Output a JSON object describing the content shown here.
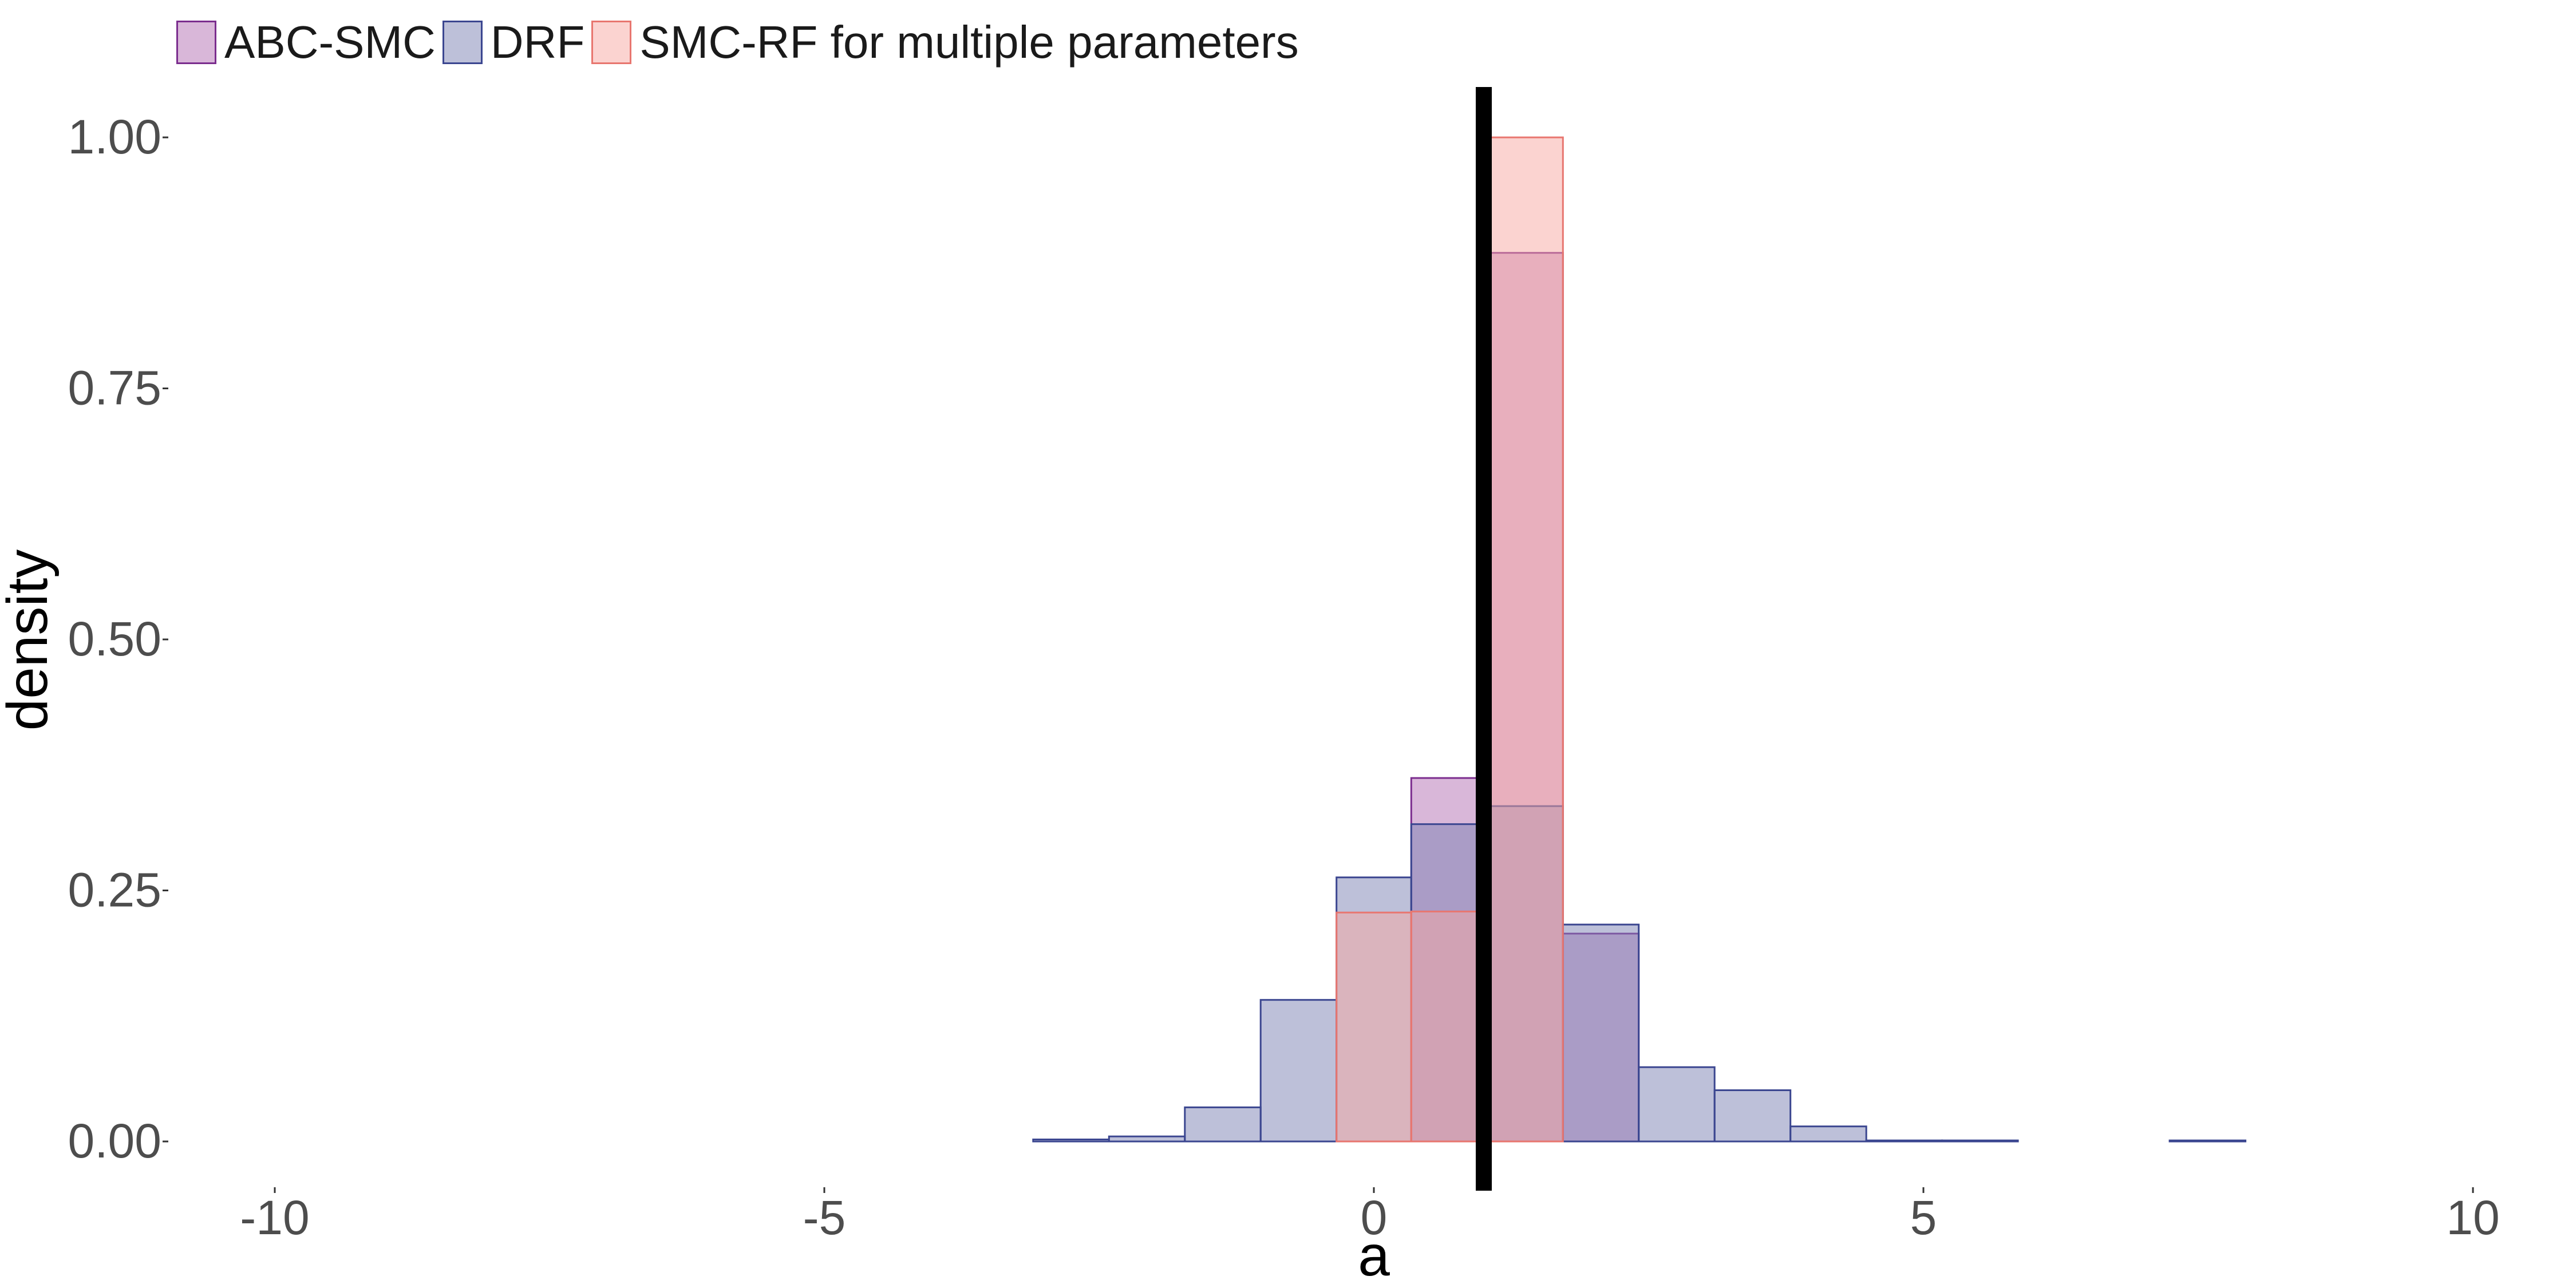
{
  "chart_data": {
    "type": "histogram",
    "xlabel": "a",
    "ylabel": "density",
    "xlim": [
      -10,
      10
    ],
    "ylim": [
      0,
      1.0
    ],
    "x_ticks": [
      -10,
      -5,
      0,
      5,
      10
    ],
    "x_tick_labels": [
      "-10",
      "-5",
      "0",
      "5",
      "10"
    ],
    "y_ticks": [
      0,
      0.25,
      0.5,
      0.75,
      1.0
    ],
    "y_tick_labels": [
      "0.00",
      "0.25",
      "0.50",
      "0.75",
      "1.00"
    ],
    "grid": false,
    "legend_position": "top-left",
    "bin_edges": [
      -10,
      -9.31,
      -8.62,
      -7.93,
      -7.24,
      -6.55,
      -5.86,
      -5.17,
      -4.48,
      -3.79,
      -3.1,
      -2.41,
      -1.72,
      -1.03,
      -0.34,
      0.34,
      1.03,
      1.72,
      2.41,
      3.1,
      3.79,
      4.48,
      5.17,
      5.86,
      6.55,
      7.24,
      7.93,
      8.62,
      9.31,
      10
    ],
    "reference_line": {
      "x": 1.0,
      "color": "#000000"
    },
    "series": [
      {
        "name": "ABC-SMC",
        "fill": "#b46fb4",
        "stroke": "#7b2d8e",
        "opacity": 0.5,
        "values": [
          0,
          0,
          0,
          0,
          0,
          0,
          0,
          0,
          0,
          0,
          0,
          0,
          0,
          0,
          0,
          0.362,
          0.885,
          0.207,
          0,
          0,
          0,
          0,
          0,
          0,
          0,
          0,
          0,
          0,
          0
        ]
      },
      {
        "name": "DRF",
        "fill": "#7b81b4",
        "stroke": "#3b4690",
        "opacity": 0.5,
        "values": [
          0,
          0,
          0,
          0,
          0,
          0,
          0,
          0,
          0,
          0,
          0.002,
          0.005,
          0.034,
          0.141,
          0.263,
          0.316,
          0.334,
          0.216,
          0.074,
          0.051,
          0.015,
          0.001,
          0.001,
          0,
          0,
          0.001,
          0,
          0,
          0
        ]
      },
      {
        "name": "SMC-RF for multiple parameters",
        "fill": "#f8a8a2",
        "stroke": "#e8766f",
        "opacity": 0.5,
        "values": [
          0,
          0,
          0,
          0,
          0,
          0,
          0,
          0,
          0,
          0,
          0,
          0,
          0,
          0,
          0.228,
          0.229,
          1.0,
          0,
          0,
          0,
          0,
          0,
          0,
          0,
          0,
          0,
          0,
          0,
          0
        ]
      }
    ]
  }
}
